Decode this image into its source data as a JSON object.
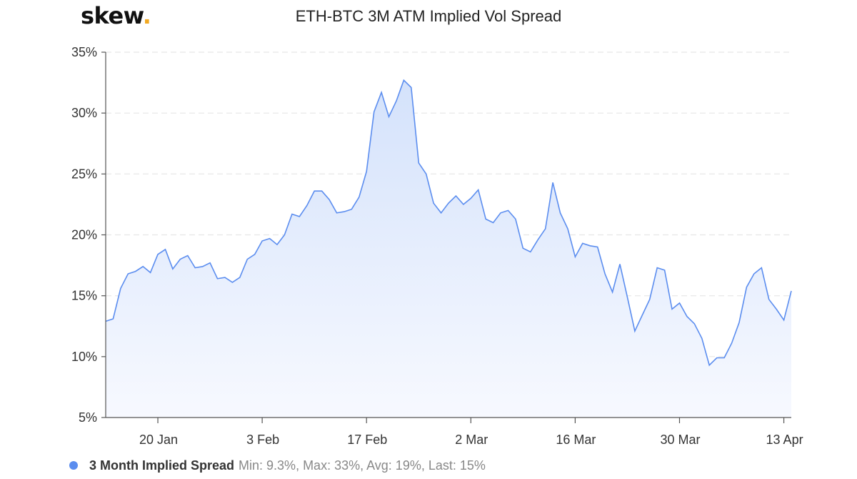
{
  "logo": {
    "text": "skew",
    "dot": "."
  },
  "chart_data": {
    "type": "area",
    "title": "ETH-BTC 3M ATM Implied Vol Spread",
    "xlabel": "",
    "ylabel": "",
    "ylim": [
      5,
      35
    ],
    "yticks": [
      5,
      10,
      15,
      20,
      25,
      30,
      35
    ],
    "y_tick_suffix": "%",
    "x_tick_labels": [
      "20 Jan",
      "3 Feb",
      "17 Feb",
      "2 Mar",
      "16 Mar",
      "30 Mar",
      "13 Apr"
    ],
    "x_tick_positions": [
      7,
      21,
      35,
      49,
      63,
      77,
      91
    ],
    "grid": true,
    "legend_position": "bottom-left",
    "colors": {
      "line": "#5b8def",
      "fill_top": "#d4e2fb",
      "fill_bottom": "#f7f9ff",
      "grid": "#e6e6e6",
      "axis": "#555555"
    },
    "series": [
      {
        "name": "3 Month Implied Spread",
        "stats": "Min: 9.3%, Max: 33%, Avg: 19%, Last: 15%",
        "x": [
          0,
          1,
          2,
          3,
          4,
          5,
          6,
          7,
          8,
          9,
          10,
          11,
          12,
          13,
          14,
          15,
          16,
          17,
          18,
          19,
          20,
          21,
          22,
          23,
          24,
          25,
          26,
          27,
          28,
          29,
          30,
          31,
          32,
          33,
          34,
          35,
          36,
          37,
          38,
          39,
          40,
          41,
          42,
          43,
          44,
          45,
          46,
          47,
          48,
          49,
          50,
          51,
          52,
          53,
          54,
          55,
          56,
          57,
          58,
          59,
          60,
          61,
          62,
          63,
          64,
          65,
          66,
          67,
          68,
          69,
          70,
          71,
          72,
          73,
          74,
          75,
          76,
          77,
          78,
          79,
          80,
          81,
          82,
          83,
          84,
          85,
          86,
          87,
          88,
          89,
          90,
          91,
          92
        ],
        "values": [
          12.9,
          13.1,
          15.6,
          16.8,
          17.0,
          17.4,
          16.9,
          18.4,
          18.8,
          17.2,
          18.0,
          18.3,
          17.3,
          17.4,
          17.7,
          16.4,
          16.5,
          16.1,
          16.5,
          18.0,
          18.4,
          19.5,
          19.7,
          19.2,
          20.0,
          21.7,
          21.5,
          22.4,
          23.6,
          23.6,
          22.9,
          21.8,
          21.9,
          22.1,
          23.1,
          25.2,
          30.1,
          31.7,
          29.7,
          31.0,
          32.7,
          32.1,
          25.9,
          25.0,
          22.6,
          21.8,
          22.6,
          23.2,
          22.5,
          23.0,
          23.7,
          21.3,
          21.0,
          21.8,
          22.0,
          21.3,
          18.9,
          18.6,
          19.6,
          20.5,
          24.3,
          21.8,
          20.5,
          18.2,
          19.3,
          19.1,
          19.0,
          16.8,
          15.3,
          17.6,
          14.9,
          12.1,
          13.4,
          14.7,
          17.3,
          17.1,
          13.9,
          14.4,
          13.3,
          12.7,
          11.5,
          9.3,
          9.9,
          9.9,
          11.1,
          12.8,
          15.7,
          16.8,
          17.3,
          14.7,
          13.9,
          13.0,
          15.4
        ]
      }
    ]
  }
}
